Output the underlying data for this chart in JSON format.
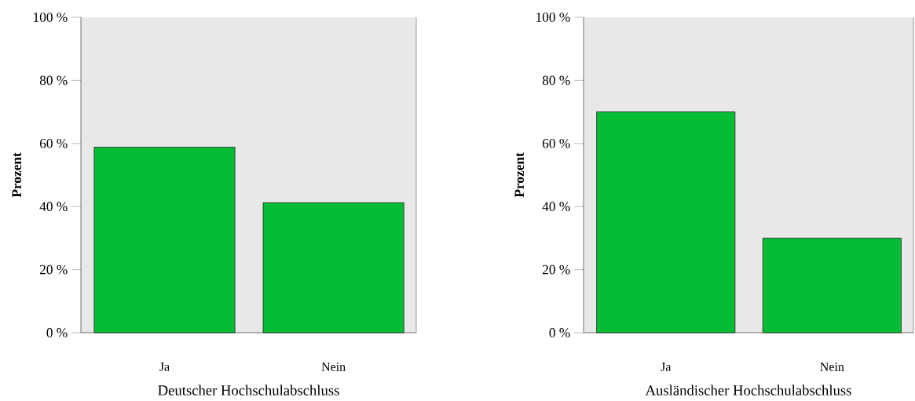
{
  "chart_data": [
    {
      "type": "bar",
      "xlabel": "Deutscher Hochschulabschluss",
      "ylabel": "Prozent",
      "categories": [
        "Ja",
        "Nein"
      ],
      "values": [
        58.8,
        41.2
      ],
      "color": "#05bd35",
      "ylim": [
        0,
        100
      ],
      "yticks": [
        {
          "value": 0,
          "label": "0 %"
        },
        {
          "value": 20,
          "label": "20 %"
        },
        {
          "value": 40,
          "label": "40 %"
        },
        {
          "value": 60,
          "label": "60 %"
        },
        {
          "value": 80,
          "label": "80 %"
        },
        {
          "value": 100,
          "label": "100 %"
        }
      ]
    },
    {
      "type": "bar",
      "xlabel": "Ausländischer Hochschulabschluss",
      "ylabel": "Prozent",
      "categories": [
        "Ja",
        "Nein"
      ],
      "values": [
        70,
        30
      ],
      "color": "#05bd35",
      "ylim": [
        0,
        100
      ],
      "yticks": [
        {
          "value": 0,
          "label": "0 %"
        },
        {
          "value": 20,
          "label": "20 %"
        },
        {
          "value": 40,
          "label": "40 %"
        },
        {
          "value": 60,
          "label": "60 %"
        },
        {
          "value": 80,
          "label": "80 %"
        },
        {
          "value": 100,
          "label": "100 %"
        }
      ]
    }
  ]
}
